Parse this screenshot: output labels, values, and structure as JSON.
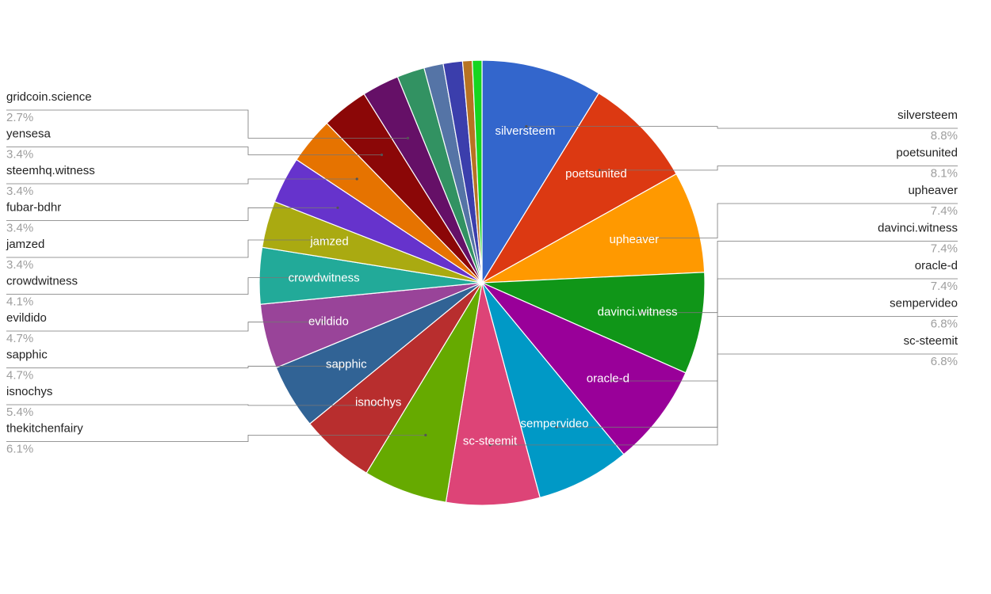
{
  "chart_data": {
    "type": "pie",
    "start_angle_deg": 0,
    "direction": "clockwise",
    "slices": [
      {
        "name": "silversteem",
        "value": 8.8,
        "pct_label": "8.8%",
        "color": "#3366cc",
        "inside_label": true,
        "side": "right"
      },
      {
        "name": "poetsunited",
        "value": 8.1,
        "pct_label": "8.1%",
        "color": "#dc3912",
        "inside_label": true,
        "side": "right"
      },
      {
        "name": "upheaver",
        "value": 7.4,
        "pct_label": "7.4%",
        "color": "#ff9900",
        "inside_label": true,
        "side": "right"
      },
      {
        "name": "davinci.witness",
        "value": 7.4,
        "pct_label": "7.4%",
        "color": "#109618",
        "inside_label": true,
        "side": "right"
      },
      {
        "name": "oracle-d",
        "value": 7.4,
        "pct_label": "7.4%",
        "color": "#990099",
        "inside_label": true,
        "side": "right"
      },
      {
        "name": "sempervideo",
        "value": 6.8,
        "pct_label": "6.8%",
        "color": "#0099c6",
        "inside_label": true,
        "side": "right"
      },
      {
        "name": "sc-steemit",
        "value": 6.8,
        "pct_label": "6.8%",
        "color": "#dd4477",
        "inside_label": true,
        "side": "right"
      },
      {
        "name": "thekitchenfairy",
        "value": 6.1,
        "pct_label": "6.1%",
        "color": "#66aa00",
        "inside_label": false,
        "side": "left"
      },
      {
        "name": "isnochys",
        "value": 5.4,
        "pct_label": "5.4%",
        "color": "#b82e2e",
        "inside_label": true,
        "side": "left"
      },
      {
        "name": "sapphic",
        "value": 4.7,
        "pct_label": "4.7%",
        "color": "#316395",
        "inside_label": true,
        "side": "left"
      },
      {
        "name": "evildido",
        "value": 4.7,
        "pct_label": "4.7%",
        "color": "#994499",
        "inside_label": true,
        "side": "left"
      },
      {
        "name": "crowdwitness",
        "value": 4.1,
        "pct_label": "4.1%",
        "color": "#22aa99",
        "inside_label": true,
        "side": "left"
      },
      {
        "name": "jamzed",
        "value": 3.4,
        "pct_label": "3.4%",
        "color": "#aaaa11",
        "inside_label": true,
        "side": "left"
      },
      {
        "name": "fubar-bdhr",
        "value": 3.4,
        "pct_label": "3.4%",
        "color": "#6633cc",
        "inside_label": false,
        "side": "left"
      },
      {
        "name": "steemhq.witness",
        "value": 3.4,
        "pct_label": "3.4%",
        "color": "#e67300",
        "inside_label": false,
        "side": "left"
      },
      {
        "name": "yensesa",
        "value": 3.4,
        "pct_label": "3.4%",
        "color": "#8b0707",
        "inside_label": false,
        "side": "left"
      },
      {
        "name": "gridcoin.science",
        "value": 2.7,
        "pct_label": "2.7%",
        "color": "#651067",
        "inside_label": false,
        "side": "left"
      },
      {
        "name": "",
        "value": 2.0,
        "color": "#329262",
        "inside_label": false,
        "side": "none"
      },
      {
        "name": "",
        "value": 1.4,
        "color": "#5574a6",
        "inside_label": false,
        "side": "none"
      },
      {
        "name": "",
        "value": 1.4,
        "color": "#3b3eac",
        "inside_label": false,
        "side": "none"
      },
      {
        "name": "",
        "value": 0.7,
        "color": "#b77322",
        "inside_label": false,
        "side": "none"
      },
      {
        "name": "",
        "value": 0.7,
        "color": "#16d620",
        "inside_label": false,
        "side": "none"
      }
    ]
  }
}
